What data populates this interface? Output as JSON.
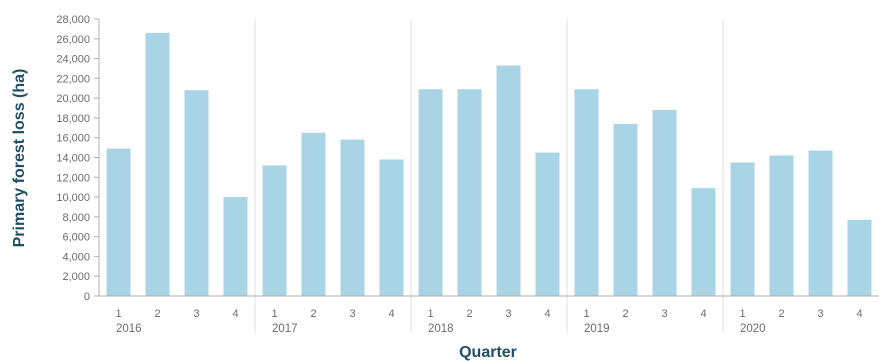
{
  "chart_data": {
    "type": "bar",
    "xlabel": "Quarter",
    "ylabel": "Primary forest loss (ha)",
    "ylim": [
      0,
      28000
    ],
    "yticks": [
      0,
      2000,
      4000,
      6000,
      8000,
      10000,
      12000,
      14000,
      16000,
      18000,
      20000,
      22000,
      24000,
      26000,
      28000
    ],
    "ytick_labels": [
      "0",
      "2,000",
      "4,000",
      "6,000",
      "8,000",
      "10,000",
      "12,000",
      "14,000",
      "16,000",
      "18,000",
      "20,000",
      "22,000",
      "24,000",
      "26,000",
      "28,000"
    ],
    "grid": false,
    "bar_color": "#a8d4e6",
    "groups": [
      {
        "label": "2016",
        "quarters": [
          "1",
          "2",
          "3",
          "4"
        ],
        "values": [
          14900,
          26600,
          20800,
          10000
        ]
      },
      {
        "label": "2017",
        "quarters": [
          "1",
          "2",
          "3",
          "4"
        ],
        "values": [
          13200,
          16500,
          15800,
          13800
        ]
      },
      {
        "label": "2018",
        "quarters": [
          "1",
          "2",
          "3",
          "4"
        ],
        "values": [
          20900,
          20900,
          23300,
          14500
        ]
      },
      {
        "label": "2019",
        "quarters": [
          "1",
          "2",
          "3",
          "4"
        ],
        "values": [
          20900,
          17400,
          18800,
          10900
        ]
      },
      {
        "label": "2020",
        "quarters": [
          "1",
          "2",
          "3",
          "4"
        ],
        "values": [
          13500,
          14200,
          14700,
          7700
        ]
      }
    ]
  }
}
